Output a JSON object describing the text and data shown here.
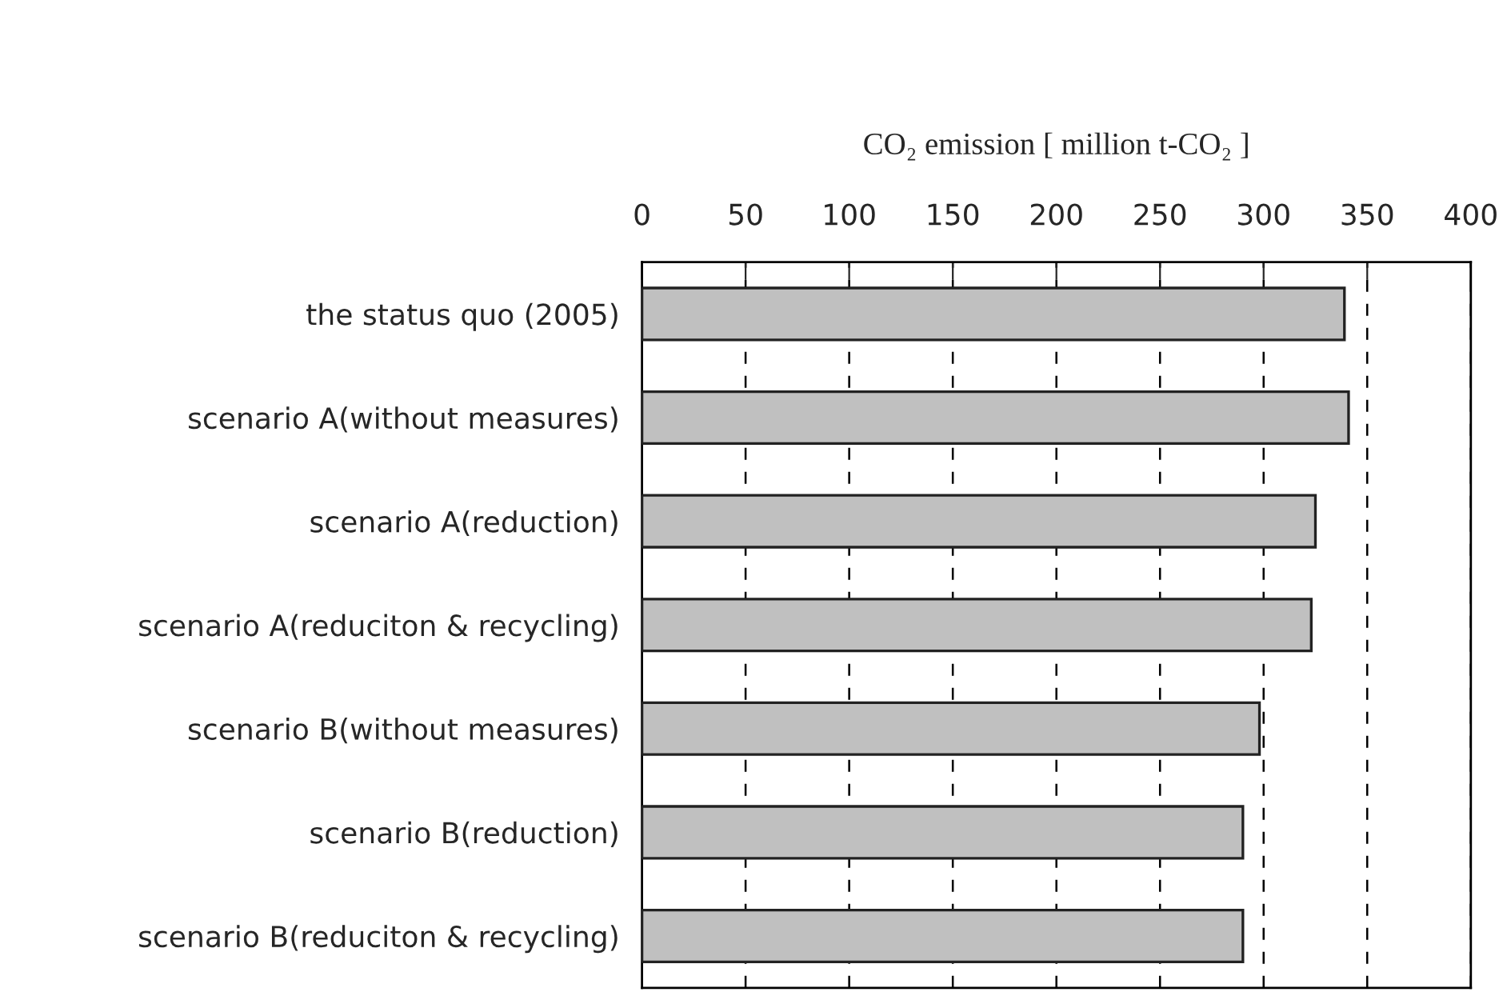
{
  "chart_data": {
    "type": "bar",
    "orientation": "horizontal",
    "xlabel": "CO₂ emission [ million t-CO₂ ]",
    "categories": [
      "the status quo (2005)",
      "scenario A(without measures)",
      "scenario A(reduction)",
      "scenario A(reduciton & recycling)",
      "scenario B(without measures)",
      "scenario B(reduction)",
      "scenario B(reduciton & recycling)"
    ],
    "values": [
      339,
      341,
      325,
      323,
      298,
      290,
      290
    ],
    "color": "#c0c0c0",
    "xlim": [
      0,
      400
    ],
    "xticks": [
      0,
      50,
      100,
      150,
      200,
      250,
      300,
      350,
      400
    ],
    "grid": "x"
  }
}
